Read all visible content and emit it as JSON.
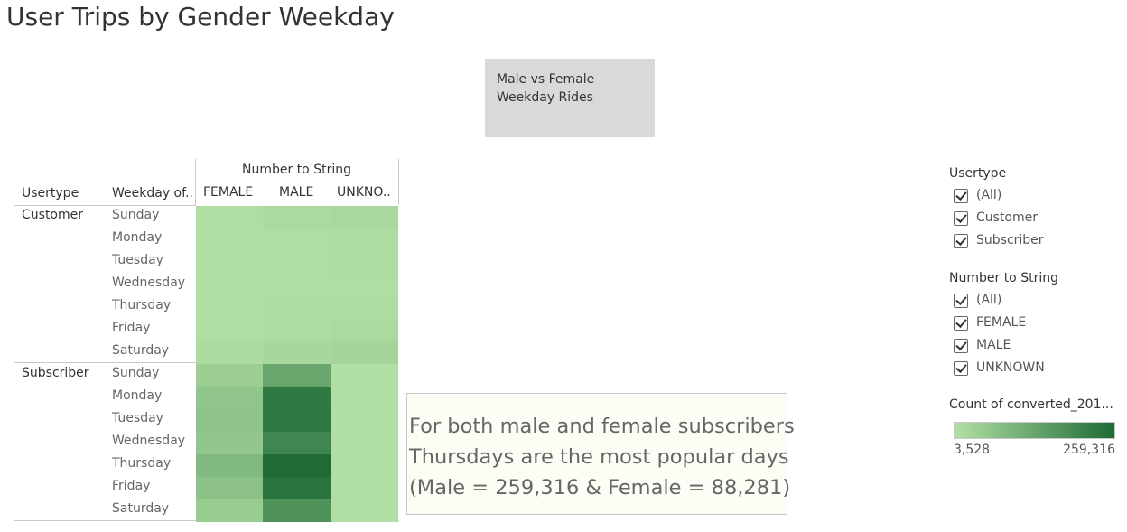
{
  "title": "User Trips by Gender Weekday",
  "caption_box": {
    "line1": "Male vs Female",
    "line2": "Weekday Rides"
  },
  "table": {
    "column_group_header": "Number to String",
    "row_header_usertype": "Usertype",
    "row_header_weekday": "Weekday of..",
    "columns": [
      "FEMALE",
      "MALE",
      "UNKNO.."
    ]
  },
  "annotation": {
    "line1": "For both male and female subscribers",
    "line2": "Thursdays are the most popular days",
    "line3": "(Male = 259,316 & Female = 88,281)"
  },
  "filters": {
    "usertype": {
      "title": "Usertype",
      "items": [
        "(All)",
        "Customer",
        "Subscriber"
      ]
    },
    "number_to_string": {
      "title": "Number to String",
      "items": [
        "(All)",
        "FEMALE",
        "MALE",
        "UNKNOWN"
      ]
    }
  },
  "legend": {
    "title": "Count of converted_201...",
    "min_label": "3,528",
    "max_label": "259,316",
    "min": 3528,
    "max": 259316,
    "color_low": "#b2e0a4",
    "color_high": "#1e6b36"
  },
  "chart_data": {
    "type": "heatmap",
    "title": "User Trips by Gender Weekday",
    "x_categories": [
      "FEMALE",
      "MALE",
      "UNKNO.."
    ],
    "groups": [
      {
        "usertype": "Customer",
        "rows": [
          {
            "weekday": "Sunday",
            "values": [
              9000,
              16000,
              20000
            ]
          },
          {
            "weekday": "Monday",
            "values": [
              5000,
              9000,
              11000
            ]
          },
          {
            "weekday": "Tuesday",
            "values": [
              4500,
              8500,
              10000
            ]
          },
          {
            "weekday": "Wednesday",
            "values": [
              3528,
              7500,
              9000
            ]
          },
          {
            "weekday": "Thursday",
            "values": [
              5000,
              10000,
              12000
            ]
          },
          {
            "weekday": "Friday",
            "values": [
              6500,
              13000,
              16000
            ]
          },
          {
            "weekday": "Saturday",
            "values": [
              14000,
              23000,
              30000
            ]
          }
        ]
      },
      {
        "usertype": "Subscriber",
        "rows": [
          {
            "weekday": "Sunday",
            "values": [
              42000,
              130000,
              5500
            ]
          },
          {
            "weekday": "Monday",
            "values": [
              62000,
              228000,
              5500
            ]
          },
          {
            "weekday": "Tuesday",
            "values": [
              66000,
              231000,
              5500
            ]
          },
          {
            "weekday": "Wednesday",
            "values": [
              60000,
              200000,
              5500
            ]
          },
          {
            "weekday": "Thursday",
            "values": [
              88281,
              259316,
              5500
            ]
          },
          {
            "weekday": "Friday",
            "values": [
              70000,
              240000,
              5500
            ]
          },
          {
            "weekday": "Saturday",
            "values": [
              48000,
              175000,
              5500
            ]
          }
        ]
      }
    ]
  }
}
